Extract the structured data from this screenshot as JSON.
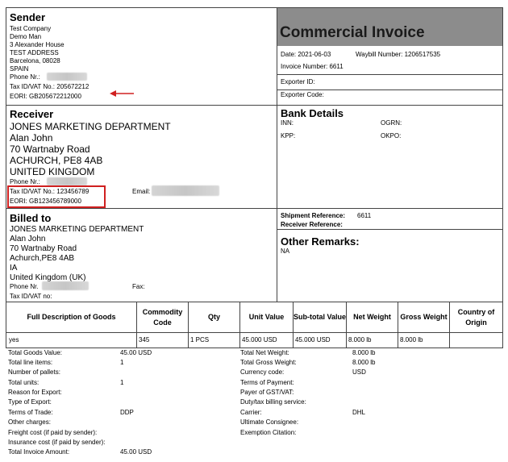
{
  "sender": {
    "heading": "Sender",
    "lines": [
      "Test Company",
      "Demo Man",
      "3 Alexander House",
      "TEST ADDRESS",
      "Barcelona, 08028",
      "SPAIN"
    ],
    "phone_label": "Phone Nr.:",
    "tax_id": "Tax ID/VAT No.: 205672212",
    "eori": "EORI: GB205672212000"
  },
  "invoice": {
    "title": "Commercial Invoice",
    "date": "Date: 2021-06-03",
    "waybill": "Waybill Number: 1206517535",
    "invoice_number": "Invoice Number: 6611",
    "exporter_id": "Exporter ID:",
    "exporter_code": "Exporter Code:"
  },
  "receiver": {
    "heading": "Receiver",
    "lines": [
      "JONES MARKETING DEPARTMENT",
      "Alan John",
      "70 Wartnaby Road",
      "ACHURCH, PE8 4AB",
      "UNITED KINGDOM"
    ],
    "phone_label": "Phone Nr.:",
    "tax_id": "Tax ID/VAT No.: 123456789",
    "email_label": "Email:",
    "eori": "EORI: GB123456789000"
  },
  "bank": {
    "heading": "Bank Details",
    "inn": "INN:",
    "ogrn": "OGRN:",
    "kpp": "KPP:",
    "okpo": "OKPO:"
  },
  "billed": {
    "heading": "Billed to",
    "lines": [
      "JONES MARKETING DEPARTMENT",
      "Alan John",
      "70 Wartnaby Road",
      "Achurch,PE8 4AB",
      "IA",
      "United Kingdom (UK)"
    ],
    "phone_label": "Phone Nr.",
    "fax_label": "Fax:",
    "tax_id": "Tax ID/VAT no:"
  },
  "references": {
    "shipment_label": "Shipment Reference:",
    "shipment_value": "6611",
    "receiver_label": "Receiver Reference:"
  },
  "remarks": {
    "heading": "Other Remarks:",
    "value": "NA"
  },
  "table": {
    "headers": [
      "Full Description of Goods",
      "Commodity Code",
      "Qty",
      "Unit Value",
      "Sub-total Value",
      "Net Weight",
      "Gross Weight",
      "Country of Origin"
    ],
    "row": [
      "yes",
      "345",
      "1 PCS",
      "45.000 USD",
      "45.000 USD",
      "8.000 lb",
      "8.000 lb",
      ""
    ]
  },
  "summary_left": [
    {
      "label": "Total Goods Value:",
      "value": "45.00 USD"
    },
    {
      "label": "Total line items:",
      "value": "1"
    },
    {
      "label": "Number of pallets:",
      "value": ""
    },
    {
      "label": "Total units:",
      "value": "1"
    },
    {
      "label": "Reason for Export:",
      "value": ""
    },
    {
      "label": "Type of Export:",
      "value": ""
    },
    {
      "label": "Terms of Trade:",
      "value": "DDP"
    },
    {
      "label": "Other charges:",
      "value": ""
    },
    {
      "label": "Freight cost (if paid by sender):",
      "value": ""
    },
    {
      "label": "Insurance cost (if paid by sender):",
      "value": ""
    },
    {
      "label": "Total Invoice Amount:",
      "value": "45.00 USD"
    }
  ],
  "summary_right": [
    {
      "label": "Total Net Weight:",
      "value": "8.000 lb"
    },
    {
      "label": "Total Gross Weight:",
      "value": "8.000 lb"
    },
    {
      "label": "Currency code:",
      "value": "USD"
    },
    {
      "label": "Terms of Payment:",
      "value": ""
    },
    {
      "label": "Payer of GST/VAT:",
      "value": ""
    },
    {
      "label": "Duty/tax billing service:",
      "value": ""
    },
    {
      "label": "Carrier:",
      "value": "DHL"
    },
    {
      "label": "Ultimate Consignee:",
      "value": ""
    },
    {
      "label": "Exemption Citation:",
      "value": ""
    }
  ],
  "colors": {
    "title_band": "#8c8c8c",
    "highlight": "#d02020"
  },
  "icons": {
    "arrow": "red-arrow-left-icon"
  }
}
